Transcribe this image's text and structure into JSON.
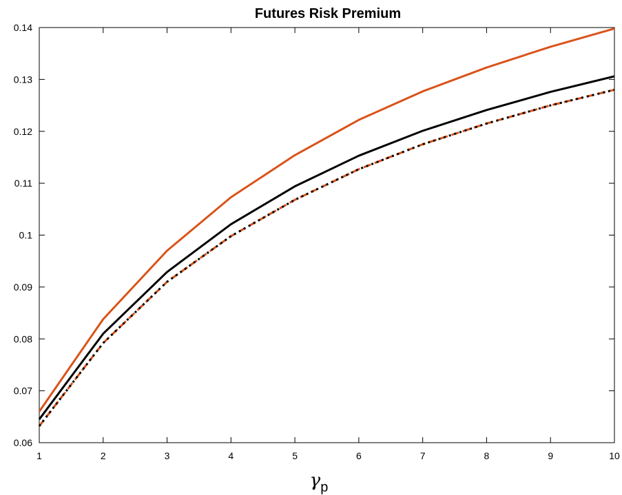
{
  "chart_data": {
    "type": "line",
    "title": "Futures Risk Premium",
    "xlabel": "γ",
    "xlabel_subscript": "p",
    "ylabel": "",
    "xlim": [
      1,
      10
    ],
    "ylim": [
      0.06,
      0.14
    ],
    "x_ticks": [
      1,
      2,
      3,
      4,
      5,
      6,
      7,
      8,
      9,
      10
    ],
    "x_tick_labels": [
      "1",
      "2",
      "3",
      "4",
      "5",
      "6",
      "7",
      "8",
      "9",
      "10"
    ],
    "y_ticks": [
      0.06,
      0.07,
      0.08,
      0.09,
      0.1,
      0.11,
      0.12,
      0.13,
      0.14
    ],
    "y_tick_labels": [
      "0.06",
      "0.07",
      "0.08",
      "0.09",
      "0.1",
      "0.11",
      "0.12",
      "0.13",
      "0.14"
    ],
    "grid": false,
    "legend": "none",
    "x": [
      1,
      2,
      3,
      4,
      5,
      6,
      7,
      8,
      9,
      10
    ],
    "series": [
      {
        "color": "#D95319",
        "style": "solid",
        "values": [
          0.066,
          0.0838,
          0.097,
          0.1073,
          0.1154,
          0.1222,
          0.1277,
          0.1323,
          0.1363,
          0.1398
        ]
      },
      {
        "color": "#000000",
        "style": "solid",
        "values": [
          0.0645,
          0.081,
          0.0929,
          0.1021,
          0.1094,
          0.1153,
          0.1201,
          0.1241,
          0.1276,
          0.1306
        ]
      },
      {
        "color": "#D95319",
        "style": "dashed",
        "values": [
          0.0632,
          0.0792,
          0.091,
          0.0998,
          0.1068,
          0.1127,
          0.1175,
          0.1215,
          0.125,
          0.128
        ]
      },
      {
        "color": "#000000",
        "style": "dotted",
        "values": [
          0.0632,
          0.0792,
          0.091,
          0.0998,
          0.1068,
          0.1127,
          0.1175,
          0.1215,
          0.125,
          0.128
        ]
      }
    ]
  }
}
